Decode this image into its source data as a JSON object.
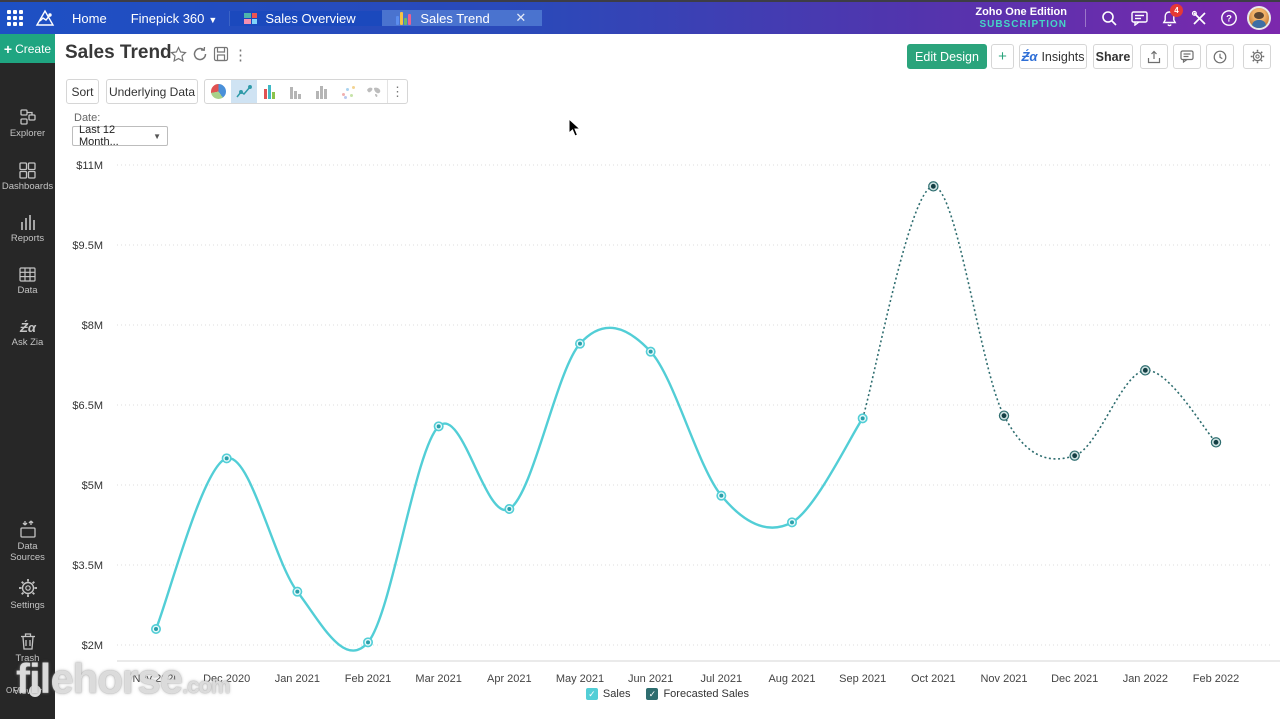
{
  "topbar": {
    "home": "Home",
    "workspace": "Finepick 360",
    "tabs": [
      {
        "label": "Sales Overview",
        "active": false
      },
      {
        "label": "Sales Trend",
        "active": true
      }
    ],
    "edition_line1": "Zoho One Edition",
    "edition_line2": "SUBSCRIPTION",
    "notification_count": "4"
  },
  "sidebar": {
    "create_label": "Create",
    "items": [
      {
        "label": "Explorer"
      },
      {
        "label": "Dashboards"
      },
      {
        "label": "Reports"
      },
      {
        "label": "Data"
      },
      {
        "label": "Ask Zia"
      },
      {
        "label": "Data Sources"
      },
      {
        "label": "Settings"
      },
      {
        "label": "Trash"
      },
      {
        "label": "Viewer"
      }
    ],
    "viewer_toggle": "OFF"
  },
  "header": {
    "title": "Sales Trend",
    "edit_design": "Edit Design",
    "plus": "+",
    "insights": "Insights",
    "share": "Share"
  },
  "toolbar": {
    "sort": "Sort",
    "underlying_data": "Underlying Data"
  },
  "filter": {
    "label": "Date:",
    "value": "Last 12 Month..."
  },
  "chart_data": {
    "type": "line",
    "title": "Sales Trend",
    "x_categories": [
      "Nov 2020",
      "Dec 2020",
      "Jan 2021",
      "Feb 2021",
      "Mar 2021",
      "Apr 2021",
      "May 2021",
      "Jun 2021",
      "Jul 2021",
      "Aug 2021",
      "Sep 2021",
      "Oct 2021",
      "Nov 2021",
      "Dec 2021",
      "Jan 2022",
      "Feb 2022"
    ],
    "y_ticks": [
      "$11M",
      "$9.5M",
      "$8M",
      "$6.5M",
      "$5M",
      "$3.5M",
      "$2M"
    ],
    "y_tick_values_musd": [
      11,
      9.5,
      8,
      6.5,
      5,
      3.5,
      2
    ],
    "y_min_musd": 2,
    "y_max_musd": 11,
    "grid": "dotted-horizontal",
    "legend_position": "bottom",
    "series": [
      {
        "name": "Sales",
        "style": "solid",
        "color": "#52ced6",
        "values_musd": [
          2.3,
          5.5,
          3.0,
          2.05,
          6.1,
          4.55,
          7.65,
          7.5,
          4.8,
          4.3,
          6.25,
          null,
          null,
          null,
          null,
          null
        ]
      },
      {
        "name": "Forecasted Sales",
        "style": "dotted",
        "color": "#2e6d6f",
        "values_musd": [
          null,
          null,
          null,
          null,
          null,
          null,
          null,
          null,
          null,
          null,
          6.25,
          10.6,
          6.3,
          5.55,
          7.15,
          5.8
        ]
      }
    ]
  },
  "watermark": {
    "name": "filehorse",
    "tld": ".com"
  }
}
